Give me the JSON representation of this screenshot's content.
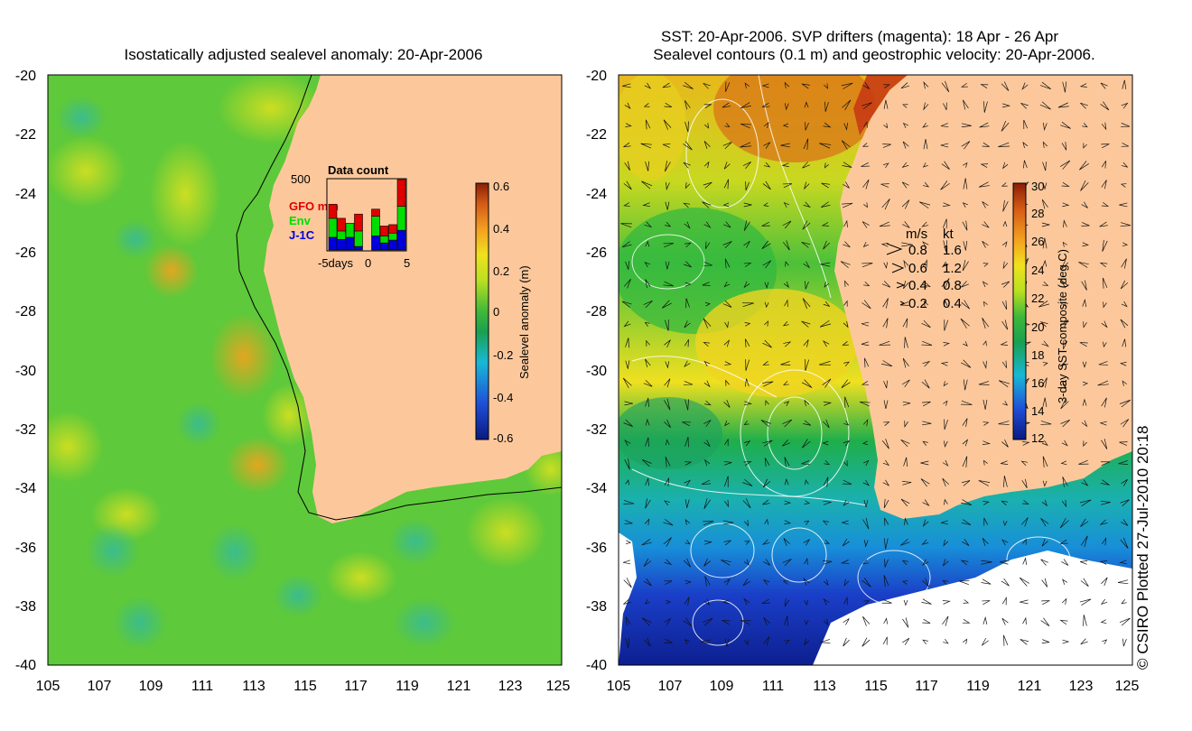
{
  "left_panel": {
    "title": "Isostatically adjusted sealevel anomaly: 20-Apr-2006",
    "y_ticks": [
      "-20",
      "-22",
      "-24",
      "-26",
      "-28",
      "-30",
      "-32",
      "-34",
      "-36",
      "-38",
      "-40"
    ],
    "x_ticks": [
      "105",
      "107",
      "109",
      "111",
      "113",
      "115",
      "117",
      "119",
      "121",
      "123",
      "125"
    ],
    "colorbar": {
      "label": "Sealevel anomaly (m)",
      "ticks": [
        "0.6",
        "0.4",
        "0.2",
        "0",
        "-0.2",
        "-0.4",
        "-0.6"
      ],
      "range": [
        -0.6,
        0.6
      ]
    },
    "inset": {
      "title": "Data count",
      "ymax_label": "500",
      "legend": [
        {
          "label": "GFO mm",
          "color": "#e00000"
        },
        {
          "label": "Env",
          "color": "#00dd00"
        },
        {
          "label": "J-1C",
          "color": "#0000dd"
        }
      ],
      "x_label_left": "-5days",
      "x_label_mid": "0",
      "x_label_right": "5",
      "bars": [
        {
          "j1": 0.18,
          "env": 0.27,
          "gfo": 0.2
        },
        {
          "j1": 0.15,
          "env": 0.12,
          "gfo": 0.18
        },
        {
          "j1": 0.18,
          "env": 0.2,
          "gfo": 0.0
        },
        {
          "j1": 0.05,
          "env": 0.22,
          "gfo": 0.24
        },
        {
          "j1": 0.0,
          "env": 0.0,
          "gfo": 0.0
        },
        {
          "j1": 0.2,
          "env": 0.28,
          "gfo": 0.1
        },
        {
          "j1": 0.1,
          "env": 0.1,
          "gfo": 0.14
        },
        {
          "j1": 0.14,
          "env": 0.1,
          "gfo": 0.12
        },
        {
          "j1": 0.28,
          "env": 0.34,
          "gfo": 0.38
        }
      ]
    }
  },
  "right_panel": {
    "title_line1": "SST: 20-Apr-2006. SVP drifters (magenta): 18 Apr - 26 Apr",
    "title_line2": "Sealevel contours (0.1 m) and geostrophic velocity: 20-Apr-2006.",
    "y_ticks": [
      "-20",
      "-22",
      "-24",
      "-26",
      "-28",
      "-30",
      "-32",
      "-34",
      "-36",
      "-38",
      "-40"
    ],
    "x_ticks": [
      "105",
      "107",
      "109",
      "111",
      "113",
      "115",
      "117",
      "119",
      "121",
      "123",
      "125"
    ],
    "colorbar": {
      "label": "3-day SST composite (deg C)",
      "ticks": [
        "30",
        "28",
        "26",
        "24",
        "22",
        "20",
        "18",
        "16",
        "14",
        "12"
      ],
      "range": [
        12,
        30
      ]
    },
    "velocity_key": {
      "header_ms": "m/s",
      "header_kt": "kt",
      "rows": [
        {
          "ms": "0.8",
          "kt": "1.6"
        },
        {
          "ms": "0.6",
          "kt": "1.2"
        },
        {
          "ms": "0.4",
          "kt": "0.8"
        },
        {
          "ms": "0.2",
          "kt": "0.4"
        }
      ]
    }
  },
  "copyright": "© CSIRO Plotted 27-Jul-2010 20:18",
  "colors": {
    "land": "#fcc89b",
    "ocean_mid": "#66cc33",
    "inset_border": "#000000"
  }
}
